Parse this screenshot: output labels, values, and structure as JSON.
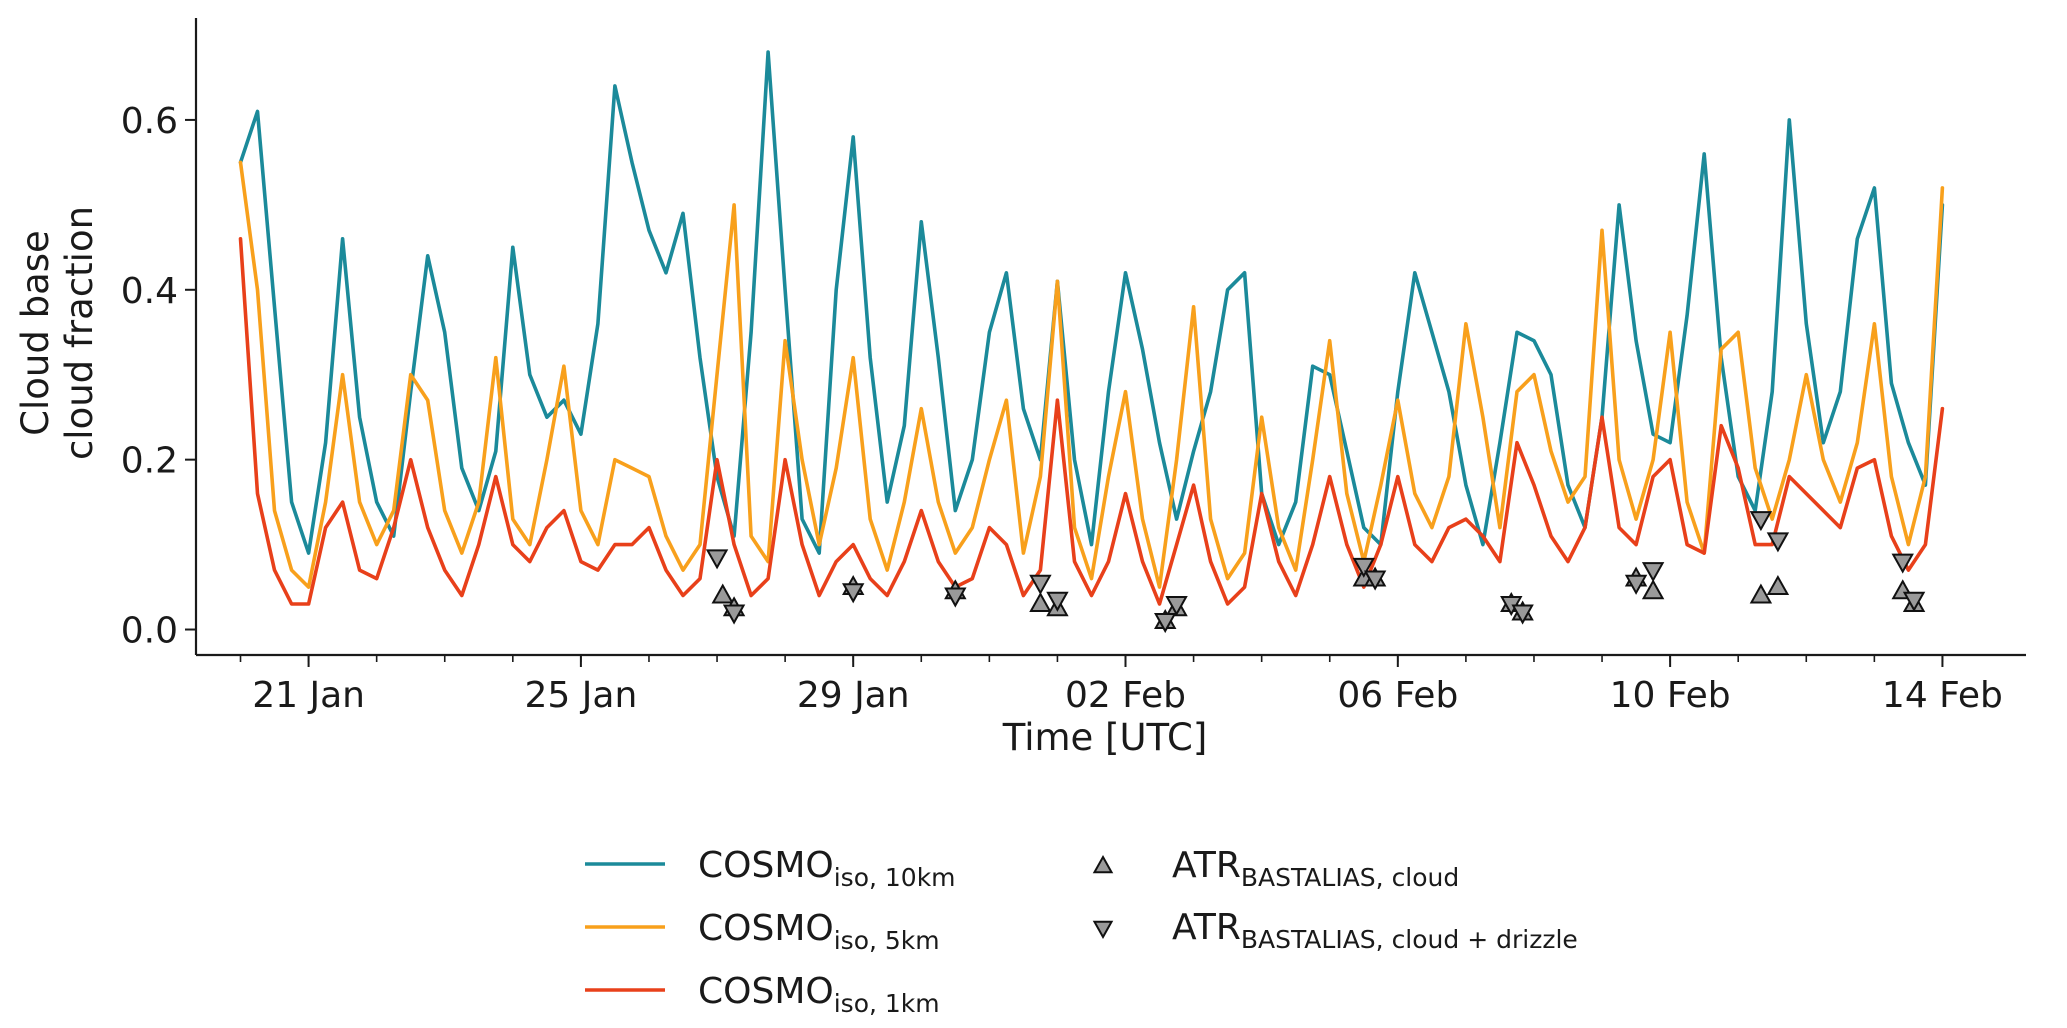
{
  "chart_data": {
    "type": "line",
    "xlabel": "Time [UTC]",
    "ylabel": "Cloud base cloud fraction",
    "ylabel_lines": [
      "Cloud base",
      "cloud fraction"
    ],
    "x_unit": "date",
    "x_year": 2020,
    "xlim": [
      "2020-01-19T21:00",
      "2020-02-14T21:00"
    ],
    "ylim": [
      -0.03,
      0.72
    ],
    "x_ticks": [
      {
        "date": "2020-01-21",
        "label": "21 Jan"
      },
      {
        "date": "2020-01-25",
        "label": "25 Jan"
      },
      {
        "date": "2020-01-29",
        "label": "29 Jan"
      },
      {
        "date": "2020-02-02",
        "label": "02 Feb"
      },
      {
        "date": "2020-02-06",
        "label": "06 Feb"
      },
      {
        "date": "2020-02-10",
        "label": "10 Feb"
      },
      {
        "date": "2020-02-14",
        "label": "14 Feb"
      }
    ],
    "y_ticks": [
      {
        "value": 0.0,
        "label": "0.0"
      },
      {
        "value": 0.2,
        "label": "0.2"
      },
      {
        "value": 0.4,
        "label": "0.4"
      },
      {
        "value": 0.6,
        "label": "0.6"
      }
    ],
    "grid": false,
    "legend_position": "bottom-center",
    "series": [
      {
        "name": "COSMO_iso,10km",
        "legend_main": "COSMO",
        "legend_sub": "iso, 10km",
        "color": "#1b8a9a",
        "style": "line",
        "x": [
          "2020-01-20T00:00",
          "2020-01-20T06:00",
          "2020-01-20T12:00",
          "2020-01-20T18:00",
          "2020-01-21T00:00",
          "2020-01-21T06:00",
          "2020-01-21T12:00",
          "2020-01-21T18:00",
          "2020-01-22T00:00",
          "2020-01-22T06:00",
          "2020-01-22T12:00",
          "2020-01-22T18:00",
          "2020-01-23T00:00",
          "2020-01-23T06:00",
          "2020-01-23T12:00",
          "2020-01-23T18:00",
          "2020-01-24T00:00",
          "2020-01-24T06:00",
          "2020-01-24T12:00",
          "2020-01-24T18:00",
          "2020-01-25T00:00",
          "2020-01-25T06:00",
          "2020-01-25T12:00",
          "2020-01-25T18:00",
          "2020-01-26T00:00",
          "2020-01-26T06:00",
          "2020-01-26T12:00",
          "2020-01-26T18:00",
          "2020-01-27T00:00",
          "2020-01-27T06:00",
          "2020-01-27T12:00",
          "2020-01-27T18:00",
          "2020-01-28T00:00",
          "2020-01-28T06:00",
          "2020-01-28T12:00",
          "2020-01-28T18:00",
          "2020-01-29T00:00",
          "2020-01-29T06:00",
          "2020-01-29T12:00",
          "2020-01-29T18:00",
          "2020-01-30T00:00",
          "2020-01-30T06:00",
          "2020-01-30T12:00",
          "2020-01-30T18:00",
          "2020-01-31T00:00",
          "2020-01-31T06:00",
          "2020-01-31T12:00",
          "2020-01-31T18:00",
          "2020-02-01T00:00",
          "2020-02-01T06:00",
          "2020-02-01T12:00",
          "2020-02-01T18:00",
          "2020-02-02T00:00",
          "2020-02-02T06:00",
          "2020-02-02T12:00",
          "2020-02-02T18:00",
          "2020-02-03T00:00",
          "2020-02-03T06:00",
          "2020-02-03T12:00",
          "2020-02-03T18:00",
          "2020-02-04T00:00",
          "2020-02-04T06:00",
          "2020-02-04T12:00",
          "2020-02-04T18:00",
          "2020-02-05T00:00",
          "2020-02-05T06:00",
          "2020-02-05T12:00",
          "2020-02-05T18:00",
          "2020-02-06T00:00",
          "2020-02-06T06:00",
          "2020-02-06T12:00",
          "2020-02-06T18:00",
          "2020-02-07T00:00",
          "2020-02-07T06:00",
          "2020-02-07T12:00",
          "2020-02-07T18:00",
          "2020-02-08T00:00",
          "2020-02-08T06:00",
          "2020-02-08T12:00",
          "2020-02-08T18:00",
          "2020-02-09T00:00",
          "2020-02-09T06:00",
          "2020-02-09T12:00",
          "2020-02-09T18:00",
          "2020-02-10T00:00",
          "2020-02-10T06:00",
          "2020-02-10T12:00",
          "2020-02-10T18:00",
          "2020-02-11T00:00",
          "2020-02-11T06:00",
          "2020-02-11T12:00",
          "2020-02-11T18:00",
          "2020-02-12T00:00",
          "2020-02-12T06:00",
          "2020-02-12T12:00",
          "2020-02-12T18:00",
          "2020-02-13T00:00",
          "2020-02-13T06:00",
          "2020-02-13T12:00",
          "2020-02-13T18:00",
          "2020-02-14T00:00"
        ],
        "y": [
          0.55,
          0.61,
          0.38,
          0.15,
          0.09,
          0.22,
          0.46,
          0.25,
          0.15,
          0.11,
          0.28,
          0.44,
          0.35,
          0.19,
          0.14,
          0.21,
          0.45,
          0.3,
          0.25,
          0.27,
          0.23,
          0.36,
          0.64,
          0.55,
          0.47,
          0.42,
          0.49,
          0.32,
          0.18,
          0.11,
          0.35,
          0.68,
          0.4,
          0.13,
          0.09,
          0.4,
          0.58,
          0.32,
          0.15,
          0.24,
          0.48,
          0.32,
          0.14,
          0.2,
          0.35,
          0.42,
          0.26,
          0.2,
          0.41,
          0.2,
          0.1,
          0.28,
          0.42,
          0.33,
          0.22,
          0.13,
          0.21,
          0.28,
          0.4,
          0.42,
          0.16,
          0.1,
          0.15,
          0.31,
          0.3,
          0.21,
          0.12,
          0.1,
          0.28,
          0.42,
          0.35,
          0.28,
          0.17,
          0.1,
          0.22,
          0.35,
          0.34,
          0.3,
          0.17,
          0.12,
          0.25,
          0.5,
          0.34,
          0.23,
          0.22,
          0.37,
          0.56,
          0.32,
          0.18,
          0.14,
          0.28,
          0.6,
          0.36,
          0.22,
          0.28,
          0.46,
          0.52,
          0.29,
          0.22,
          0.17,
          0.5
        ]
      },
      {
        "name": "COSMO_iso,5km",
        "legend_main": "COSMO",
        "legend_sub": "iso, 5km",
        "color": "#f8a01c",
        "style": "line",
        "x": [
          "2020-01-20T00:00",
          "2020-01-20T06:00",
          "2020-01-20T12:00",
          "2020-01-20T18:00",
          "2020-01-21T00:00",
          "2020-01-21T06:00",
          "2020-01-21T12:00",
          "2020-01-21T18:00",
          "2020-01-22T00:00",
          "2020-01-22T06:00",
          "2020-01-22T12:00",
          "2020-01-22T18:00",
          "2020-01-23T00:00",
          "2020-01-23T06:00",
          "2020-01-23T12:00",
          "2020-01-23T18:00",
          "2020-01-24T00:00",
          "2020-01-24T06:00",
          "2020-01-24T12:00",
          "2020-01-24T18:00",
          "2020-01-25T00:00",
          "2020-01-25T06:00",
          "2020-01-25T12:00",
          "2020-01-25T18:00",
          "2020-01-26T00:00",
          "2020-01-26T06:00",
          "2020-01-26T12:00",
          "2020-01-26T18:00",
          "2020-01-27T00:00",
          "2020-01-27T06:00",
          "2020-01-27T12:00",
          "2020-01-27T18:00",
          "2020-01-28T00:00",
          "2020-01-28T06:00",
          "2020-01-28T12:00",
          "2020-01-28T18:00",
          "2020-01-29T00:00",
          "2020-01-29T06:00",
          "2020-01-29T12:00",
          "2020-01-29T18:00",
          "2020-01-30T00:00",
          "2020-01-30T06:00",
          "2020-01-30T12:00",
          "2020-01-30T18:00",
          "2020-01-31T00:00",
          "2020-01-31T06:00",
          "2020-01-31T12:00",
          "2020-01-31T18:00",
          "2020-02-01T00:00",
          "2020-02-01T06:00",
          "2020-02-01T12:00",
          "2020-02-01T18:00",
          "2020-02-02T00:00",
          "2020-02-02T06:00",
          "2020-02-02T12:00",
          "2020-02-02T18:00",
          "2020-02-03T00:00",
          "2020-02-03T06:00",
          "2020-02-03T12:00",
          "2020-02-03T18:00",
          "2020-02-04T00:00",
          "2020-02-04T06:00",
          "2020-02-04T12:00",
          "2020-02-04T18:00",
          "2020-02-05T00:00",
          "2020-02-05T06:00",
          "2020-02-05T12:00",
          "2020-02-05T18:00",
          "2020-02-06T00:00",
          "2020-02-06T06:00",
          "2020-02-06T12:00",
          "2020-02-06T18:00",
          "2020-02-07T00:00",
          "2020-02-07T06:00",
          "2020-02-07T12:00",
          "2020-02-07T18:00",
          "2020-02-08T00:00",
          "2020-02-08T06:00",
          "2020-02-08T12:00",
          "2020-02-08T18:00",
          "2020-02-09T00:00",
          "2020-02-09T06:00",
          "2020-02-09T12:00",
          "2020-02-09T18:00",
          "2020-02-10T00:00",
          "2020-02-10T06:00",
          "2020-02-10T12:00",
          "2020-02-10T18:00",
          "2020-02-11T00:00",
          "2020-02-11T06:00",
          "2020-02-11T12:00",
          "2020-02-11T18:00",
          "2020-02-12T00:00",
          "2020-02-12T06:00",
          "2020-02-12T12:00",
          "2020-02-12T18:00",
          "2020-02-13T00:00",
          "2020-02-13T06:00",
          "2020-02-13T12:00",
          "2020-02-13T18:00",
          "2020-02-14T00:00"
        ],
        "y": [
          0.55,
          0.4,
          0.14,
          0.07,
          0.05,
          0.15,
          0.3,
          0.15,
          0.1,
          0.14,
          0.3,
          0.27,
          0.14,
          0.09,
          0.15,
          0.32,
          0.13,
          0.1,
          0.2,
          0.31,
          0.14,
          0.1,
          0.2,
          0.19,
          0.18,
          0.11,
          0.07,
          0.1,
          0.3,
          0.5,
          0.11,
          0.08,
          0.34,
          0.2,
          0.1,
          0.19,
          0.32,
          0.13,
          0.07,
          0.15,
          0.26,
          0.15,
          0.09,
          0.12,
          0.2,
          0.27,
          0.09,
          0.18,
          0.41,
          0.12,
          0.06,
          0.18,
          0.28,
          0.13,
          0.05,
          0.2,
          0.38,
          0.13,
          0.06,
          0.09,
          0.25,
          0.12,
          0.07,
          0.2,
          0.34,
          0.16,
          0.08,
          0.17,
          0.27,
          0.16,
          0.12,
          0.18,
          0.36,
          0.25,
          0.12,
          0.28,
          0.3,
          0.21,
          0.15,
          0.18,
          0.47,
          0.2,
          0.13,
          0.2,
          0.35,
          0.15,
          0.09,
          0.33,
          0.35,
          0.19,
          0.13,
          0.2,
          0.3,
          0.2,
          0.15,
          0.22,
          0.36,
          0.18,
          0.1,
          0.18,
          0.52
        ]
      },
      {
        "name": "COSMO_iso,1km",
        "legend_main": "COSMO",
        "legend_sub": "iso, 1km",
        "color": "#e8401a",
        "style": "line",
        "x": [
          "2020-01-20T00:00",
          "2020-01-20T06:00",
          "2020-01-20T12:00",
          "2020-01-20T18:00",
          "2020-01-21T00:00",
          "2020-01-21T06:00",
          "2020-01-21T12:00",
          "2020-01-21T18:00",
          "2020-01-22T00:00",
          "2020-01-22T06:00",
          "2020-01-22T12:00",
          "2020-01-22T18:00",
          "2020-01-23T00:00",
          "2020-01-23T06:00",
          "2020-01-23T12:00",
          "2020-01-23T18:00",
          "2020-01-24T00:00",
          "2020-01-24T06:00",
          "2020-01-24T12:00",
          "2020-01-24T18:00",
          "2020-01-25T00:00",
          "2020-01-25T06:00",
          "2020-01-25T12:00",
          "2020-01-25T18:00",
          "2020-01-26T00:00",
          "2020-01-26T06:00",
          "2020-01-26T12:00",
          "2020-01-26T18:00",
          "2020-01-27T00:00",
          "2020-01-27T06:00",
          "2020-01-27T12:00",
          "2020-01-27T18:00",
          "2020-01-28T00:00",
          "2020-01-28T06:00",
          "2020-01-28T12:00",
          "2020-01-28T18:00",
          "2020-01-29T00:00",
          "2020-01-29T06:00",
          "2020-01-29T12:00",
          "2020-01-29T18:00",
          "2020-01-30T00:00",
          "2020-01-30T06:00",
          "2020-01-30T12:00",
          "2020-01-30T18:00",
          "2020-01-31T00:00",
          "2020-01-31T06:00",
          "2020-01-31T12:00",
          "2020-01-31T18:00",
          "2020-02-01T00:00",
          "2020-02-01T06:00",
          "2020-02-01T12:00",
          "2020-02-01T18:00",
          "2020-02-02T00:00",
          "2020-02-02T06:00",
          "2020-02-02T12:00",
          "2020-02-02T18:00",
          "2020-02-03T00:00",
          "2020-02-03T06:00",
          "2020-02-03T12:00",
          "2020-02-03T18:00",
          "2020-02-04T00:00",
          "2020-02-04T06:00",
          "2020-02-04T12:00",
          "2020-02-04T18:00",
          "2020-02-05T00:00",
          "2020-02-05T06:00",
          "2020-02-05T12:00",
          "2020-02-05T18:00",
          "2020-02-06T00:00",
          "2020-02-06T06:00",
          "2020-02-06T12:00",
          "2020-02-06T18:00",
          "2020-02-07T00:00",
          "2020-02-07T06:00",
          "2020-02-07T12:00",
          "2020-02-07T18:00",
          "2020-02-08T00:00",
          "2020-02-08T06:00",
          "2020-02-08T12:00",
          "2020-02-08T18:00",
          "2020-02-09T00:00",
          "2020-02-09T06:00",
          "2020-02-09T12:00",
          "2020-02-09T18:00",
          "2020-02-10T00:00",
          "2020-02-10T06:00",
          "2020-02-10T12:00",
          "2020-02-10T18:00",
          "2020-02-11T00:00",
          "2020-02-11T06:00",
          "2020-02-11T12:00",
          "2020-02-11T18:00",
          "2020-02-12T00:00",
          "2020-02-12T06:00",
          "2020-02-12T12:00",
          "2020-02-12T18:00",
          "2020-02-13T00:00",
          "2020-02-13T06:00",
          "2020-02-13T12:00",
          "2020-02-13T18:00",
          "2020-02-14T00:00"
        ],
        "y": [
          0.46,
          0.16,
          0.07,
          0.03,
          0.03,
          0.12,
          0.15,
          0.07,
          0.06,
          0.12,
          0.2,
          0.12,
          0.07,
          0.04,
          0.1,
          0.18,
          0.1,
          0.08,
          0.12,
          0.14,
          0.08,
          0.07,
          0.1,
          0.1,
          0.12,
          0.07,
          0.04,
          0.06,
          0.2,
          0.1,
          0.04,
          0.06,
          0.2,
          0.1,
          0.04,
          0.08,
          0.1,
          0.06,
          0.04,
          0.08,
          0.14,
          0.08,
          0.05,
          0.06,
          0.12,
          0.1,
          0.04,
          0.07,
          0.27,
          0.08,
          0.04,
          0.08,
          0.16,
          0.08,
          0.03,
          0.1,
          0.17,
          0.08,
          0.03,
          0.05,
          0.16,
          0.08,
          0.04,
          0.1,
          0.18,
          0.1,
          0.05,
          0.1,
          0.18,
          0.1,
          0.08,
          0.12,
          0.13,
          0.11,
          0.08,
          0.22,
          0.17,
          0.11,
          0.08,
          0.12,
          0.25,
          0.12,
          0.1,
          0.18,
          0.2,
          0.1,
          0.09,
          0.24,
          0.19,
          0.1,
          0.1,
          0.18,
          0.16,
          0.14,
          0.12,
          0.19,
          0.2,
          0.11,
          0.07,
          0.1,
          0.26
        ]
      },
      {
        "name": "ATR_BASTALIAS,cloud",
        "legend_main": "ATR",
        "legend_sub": "BASTALIAS, cloud",
        "color": "#9a9a9a",
        "style": "marker",
        "marker": "triangle-up",
        "x": [
          "2020-01-27T02:00",
          "2020-01-27T06:00",
          "2020-01-29T00:00",
          "2020-01-30T12:00",
          "2020-01-31T18:00",
          "2020-02-01T00:00",
          "2020-02-02T14:00",
          "2020-02-02T18:00",
          "2020-02-05T12:00",
          "2020-02-05T16:00",
          "2020-02-07T16:00",
          "2020-02-07T20:00",
          "2020-02-09T12:00",
          "2020-02-09T18:00",
          "2020-02-11T08:00",
          "2020-02-11T14:00",
          "2020-02-13T10:00",
          "2020-02-13T14:00"
        ],
        "y": [
          0.04,
          0.025,
          0.05,
          0.045,
          0.03,
          0.025,
          0.01,
          0.025,
          0.06,
          0.06,
          0.03,
          0.02,
          0.06,
          0.045,
          0.04,
          0.05,
          0.045,
          0.03
        ]
      },
      {
        "name": "ATR_BASTALIAS,cloud+drizzle",
        "legend_main": "ATR",
        "legend_sub": "BASTALIAS, cloud + drizzle",
        "color": "#9a9a9a",
        "style": "marker",
        "marker": "triangle-down",
        "x": [
          "2020-01-27T00:00",
          "2020-01-27T06:00",
          "2020-01-29T00:00",
          "2020-01-30T12:00",
          "2020-01-31T18:00",
          "2020-02-01T00:00",
          "2020-02-02T14:00",
          "2020-02-02T18:00",
          "2020-02-05T12:00",
          "2020-02-05T16:00",
          "2020-02-07T16:00",
          "2020-02-07T20:00",
          "2020-02-09T12:00",
          "2020-02-09T18:00",
          "2020-02-11T08:00",
          "2020-02-11T14:00",
          "2020-02-13T10:00",
          "2020-02-13T14:00"
        ],
        "y": [
          0.085,
          0.02,
          0.045,
          0.04,
          0.055,
          0.035,
          0.01,
          0.03,
          0.075,
          0.06,
          0.03,
          0.02,
          0.055,
          0.07,
          0.13,
          0.105,
          0.08,
          0.035
        ]
      }
    ]
  }
}
